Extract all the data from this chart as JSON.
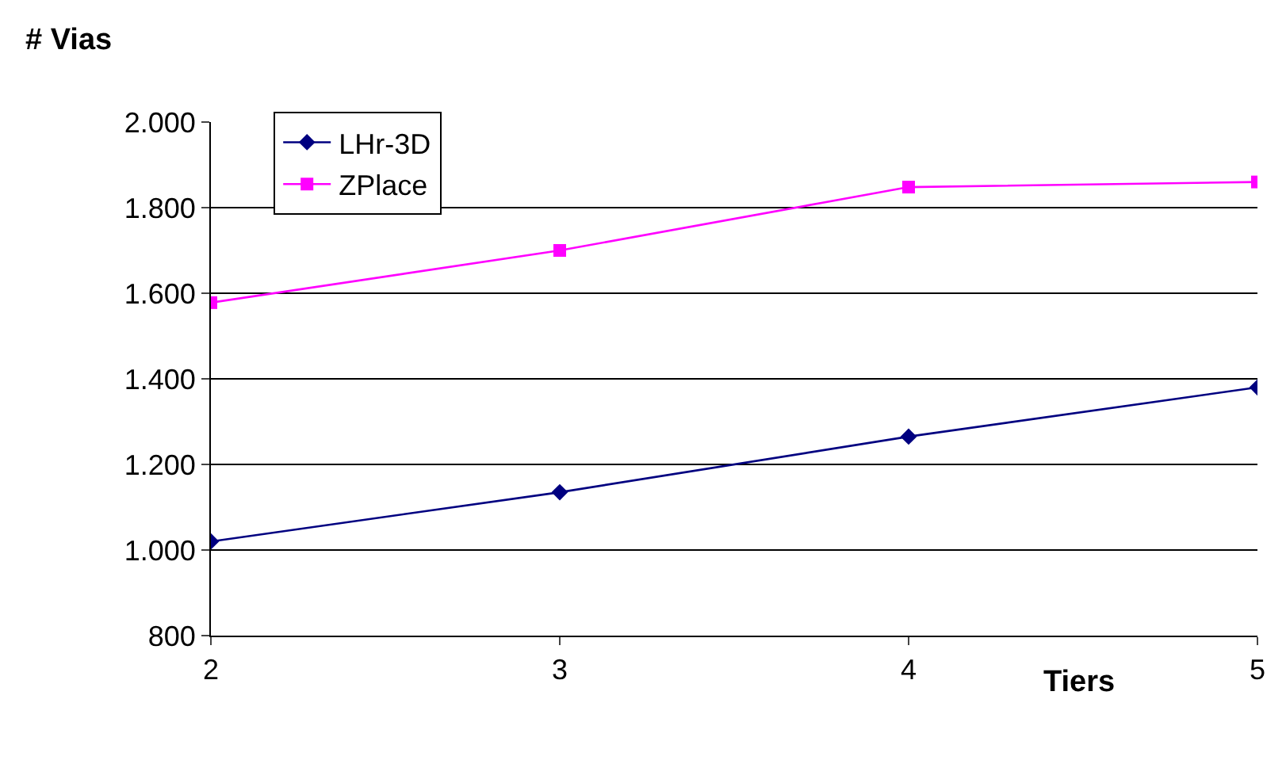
{
  "chart_data": {
    "type": "line",
    "xlabel": "Tiers",
    "ylabel": "# Vias",
    "x": [
      2,
      3,
      4,
      5
    ],
    "series": [
      {
        "name": "LHr-3D",
        "color": "#000080",
        "marker": "diamond",
        "values": [
          1020,
          1135,
          1265,
          1380
        ]
      },
      {
        "name": "ZPlace",
        "color": "#ff00ff",
        "marker": "square",
        "values": [
          1578,
          1700,
          1848,
          1860
        ]
      }
    ],
    "xlim": [
      2,
      5
    ],
    "xticks": [
      2,
      3,
      4,
      5
    ],
    "ylim": [
      800,
      2000
    ],
    "yticks": [
      800,
      {
        "value": 1000,
        "label": "1.000"
      },
      {
        "value": 1200,
        "label": "1.200"
      },
      {
        "value": 1400,
        "label": "1.400"
      },
      {
        "value": 1600,
        "label": "1.600"
      },
      {
        "value": 1800,
        "label": "1.800"
      },
      {
        "value": 2000,
        "label": "2.000"
      }
    ],
    "grid": "y",
    "legend": "top left",
    "line_style": "solid"
  }
}
